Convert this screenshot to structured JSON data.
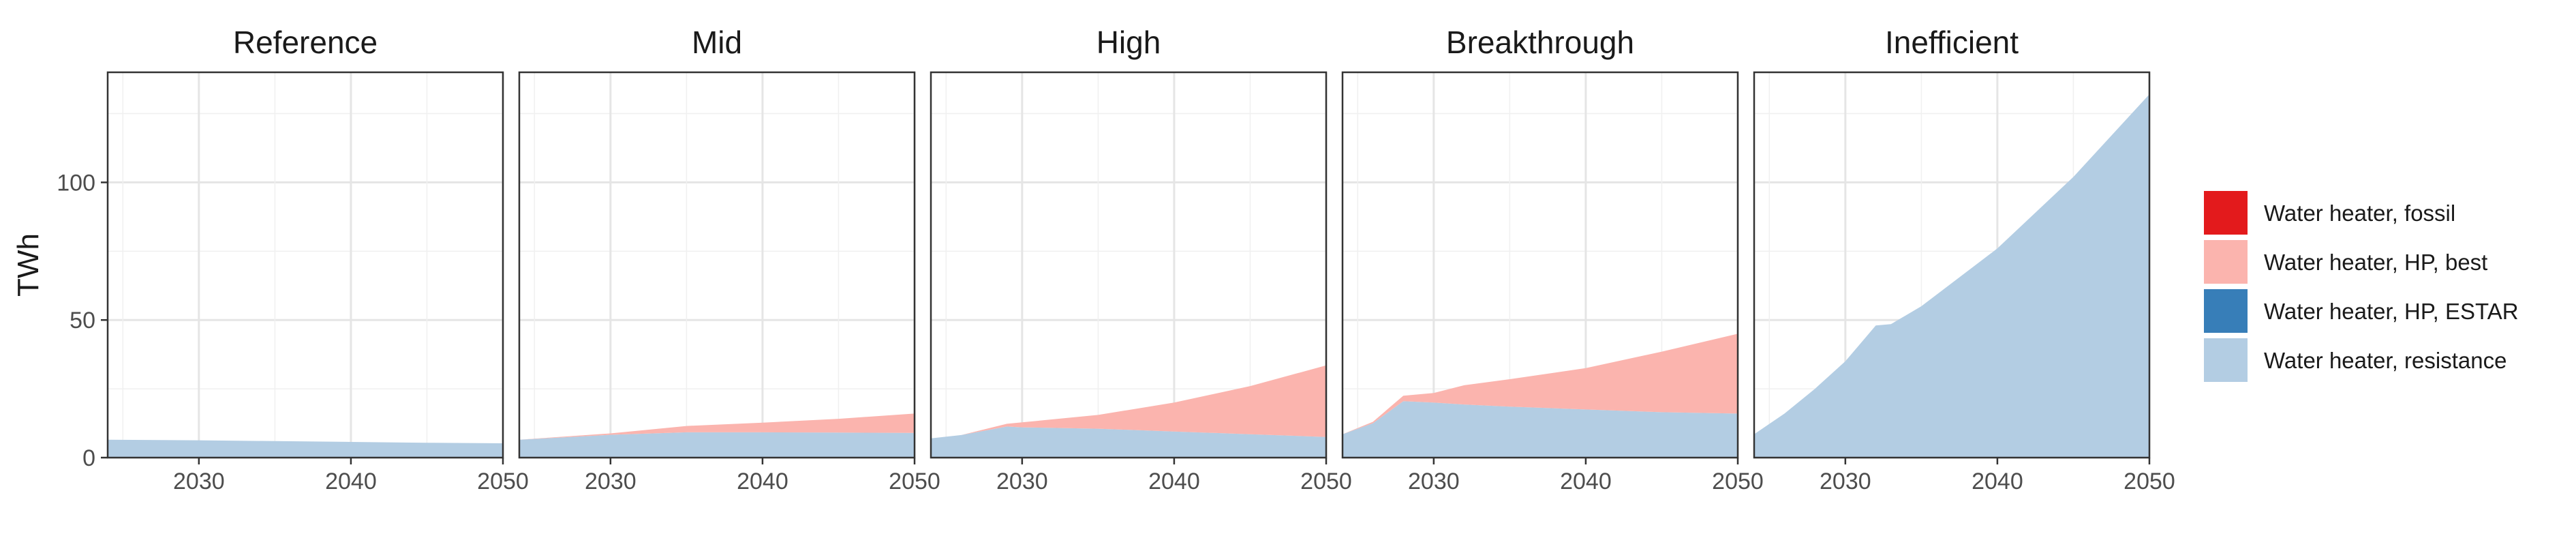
{
  "chart_data": {
    "type": "area",
    "stacked": true,
    "ylabel": "TWh",
    "xlabel": "",
    "xlim": [
      2024,
      2050
    ],
    "ylim": [
      0,
      140
    ],
    "x_ticks": [
      2030,
      2040,
      2050
    ],
    "x_tick_labels": [
      "2030",
      "2040",
      "2050"
    ],
    "y_ticks": [
      0,
      50,
      100
    ],
    "y_tick_labels": [
      "0",
      "50",
      "100"
    ],
    "grid": true,
    "legend_position": "right",
    "legend": [
      {
        "name": "Water heater, fossil",
        "color": "#e31a1c"
      },
      {
        "name": "Water heater, HP, best",
        "color": "#fbb4ae"
      },
      {
        "name": "Water heater, HP, ESTAR",
        "color": "#377eb8"
      },
      {
        "name": "Water heater, resistance",
        "color": "#b3cde3"
      }
    ],
    "panels": [
      {
        "title": "Reference",
        "x": [
          2024,
          2030,
          2035,
          2040,
          2045,
          2050
        ],
        "series": [
          {
            "name": "Water heater, resistance",
            "color": "#b3cde3",
            "values": [
              6.5,
              6.3,
              6.0,
              5.7,
              5.4,
              5.2
            ]
          },
          {
            "name": "Water heater, HP, best",
            "color": "#fbb4ae",
            "values": [
              0,
              0,
              0,
              0,
              0,
              0
            ]
          }
        ]
      },
      {
        "title": "Mid",
        "x": [
          2024,
          2030,
          2035,
          2040,
          2045,
          2050
        ],
        "series": [
          {
            "name": "Water heater, resistance",
            "color": "#b3cde3",
            "values": [
              6.5,
              8.3,
              9.2,
              9.2,
              9.1,
              9.0
            ]
          },
          {
            "name": "Water heater, HP, best",
            "color": "#fbb4ae",
            "values": [
              0,
              0.5,
              2.3,
              3.5,
              5.0,
              7.0
            ]
          }
        ]
      },
      {
        "title": "High",
        "x": [
          2024,
          2026,
          2029,
          2030,
          2035,
          2040,
          2045,
          2050
        ],
        "series": [
          {
            "name": "Water heater, resistance",
            "color": "#b3cde3",
            "values": [
              7.0,
              8.2,
              11.3,
              11.0,
              10.5,
              9.5,
              8.5,
              7.5
            ]
          },
          {
            "name": "Water heater, HP, best",
            "color": "#fbb4ae",
            "values": [
              0,
              0,
              1.0,
              1.8,
              5.0,
              10.5,
              17.5,
              26.0
            ]
          }
        ]
      },
      {
        "title": "Breakthrough",
        "x": [
          2024,
          2026,
          2028,
          2030,
          2032,
          2035,
          2040,
          2045,
          2050
        ],
        "series": [
          {
            "name": "Water heater, resistance",
            "color": "#b3cde3",
            "values": [
              8.5,
              12.5,
              20.5,
              20.0,
              19.3,
              18.5,
              17.5,
              16.5,
              16.0
            ]
          },
          {
            "name": "Water heater, HP, best",
            "color": "#fbb4ae",
            "values": [
              0,
              0.5,
              2.0,
              3.5,
              7.0,
              10.0,
              15.0,
              22.0,
              29.0
            ]
          }
        ]
      },
      {
        "title": "Inefficient",
        "x": [
          2024,
          2026,
          2028,
          2030,
          2032,
          2033,
          2035,
          2040,
          2045,
          2050
        ],
        "series": [
          {
            "name": "Water heater, resistance",
            "color": "#b3cde3",
            "values": [
              8.5,
              16,
              25,
              35,
              48,
              48.5,
              55,
              76,
              102,
              132
            ]
          },
          {
            "name": "Water heater, HP, best",
            "color": "#fbb4ae",
            "values": [
              0,
              0,
              0,
              0,
              0,
              0,
              0,
              0,
              0,
              0
            ]
          }
        ]
      }
    ]
  }
}
